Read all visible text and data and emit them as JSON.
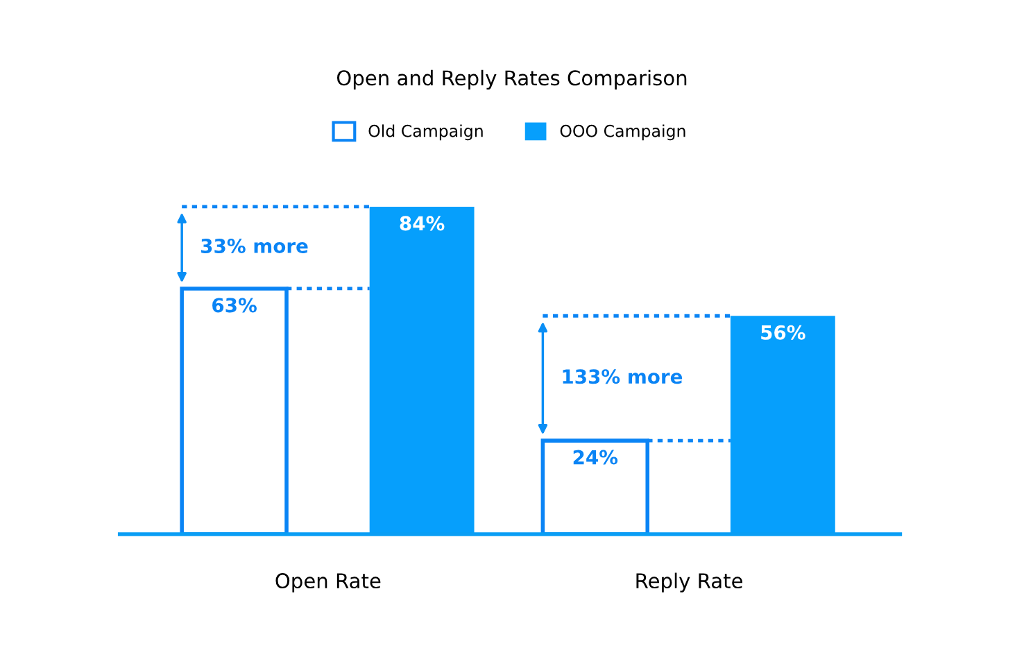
{
  "chart_data": {
    "type": "bar",
    "title": "Open and Reply Rates Comparison",
    "categories": [
      "Open Rate",
      "Reply Rate"
    ],
    "series": [
      {
        "name": "Old Campaign",
        "color": "#0a84f5",
        "values": [
          63,
          24
        ],
        "value_labels": [
          "63%",
          "24%"
        ]
      },
      {
        "name": "OOO Campaign",
        "color": "#069ffc",
        "values": [
          84,
          56
        ],
        "value_labels": [
          "84%",
          "56%"
        ]
      }
    ],
    "legend": "top",
    "grid": false,
    "annotations": [
      "33% more",
      "133% more"
    ]
  }
}
